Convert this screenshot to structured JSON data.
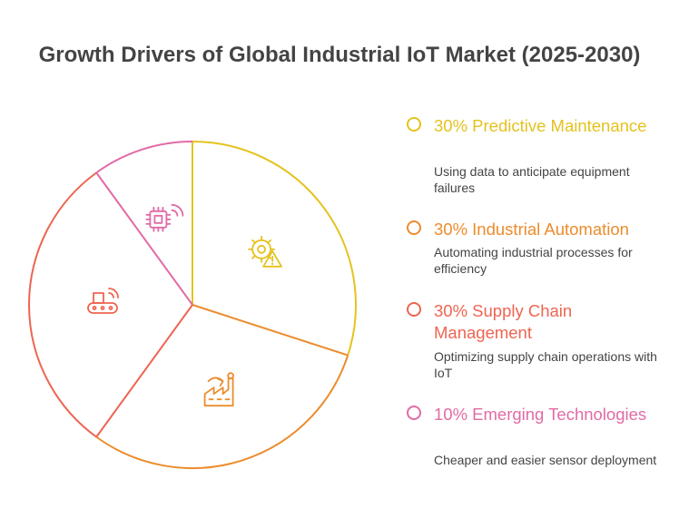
{
  "chart_data": {
    "type": "pie",
    "title": "Growth Drivers of Global Industrial IoT Market (2025-2030)",
    "slices": [
      {
        "label": "30% Predictive Maintenance",
        "value": 30,
        "color": "#e5c21f",
        "description": "Using data to anticipate equipment failures",
        "icon": "gear-warning-icon"
      },
      {
        "label": "30% Industrial Automation",
        "value": 30,
        "color": "#ec8c2d",
        "description": "Automating industrial processes for efficiency",
        "icon": "factory-icon"
      },
      {
        "label": "30% Supply Chain Management",
        "value": 30,
        "color": "#ee6552",
        "description": "Optimizing supply chain operations with IoT",
        "icon": "conveyor-wireless-icon"
      },
      {
        "label": "10% Emerging Technologies",
        "value": 10,
        "color": "#e26ba6",
        "description": "Cheaper and easier sensor deployment",
        "icon": "chip-sensor-icon"
      }
    ]
  }
}
